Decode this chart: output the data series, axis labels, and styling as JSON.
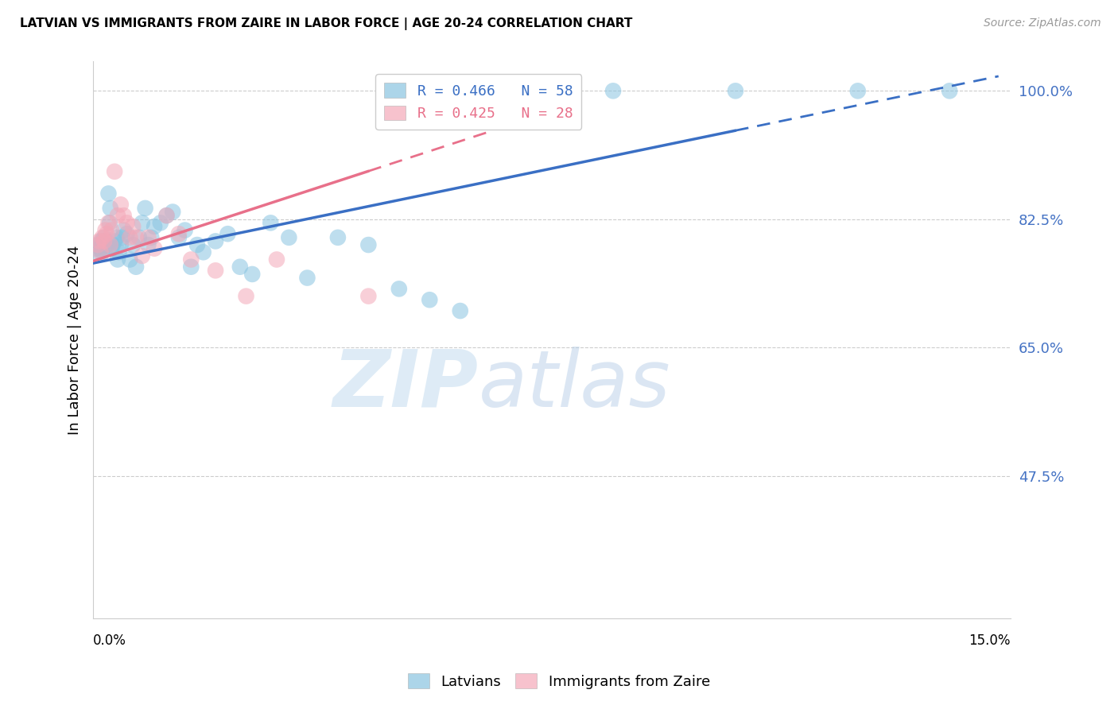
{
  "title": "LATVIAN VS IMMIGRANTS FROM ZAIRE IN LABOR FORCE | AGE 20-24 CORRELATION CHART",
  "source": "Source: ZipAtlas.com",
  "ylabel": "In Labor Force | Age 20-24",
  "ylabel_ticks": [
    47.5,
    65.0,
    82.5,
    100.0
  ],
  "ylabel_tick_labels": [
    "47.5%",
    "65.0%",
    "82.5%",
    "100.0%"
  ],
  "xmin": 0.0,
  "xmax": 15.0,
  "ymin": 28.0,
  "ymax": 104.0,
  "legend_blue": "R = 0.466   N = 58",
  "legend_pink": "R = 0.425   N = 28",
  "blue_color": "#89c4e1",
  "pink_color": "#f4a8b8",
  "blue_line_color": "#3a6fc4",
  "pink_line_color": "#e8708a",
  "watermark_zip": "ZIP",
  "watermark_atlas": "atlas",
  "blue_scatter_x": [
    0.05,
    0.08,
    0.1,
    0.12,
    0.13,
    0.15,
    0.15,
    0.17,
    0.18,
    0.2,
    0.22,
    0.25,
    0.27,
    0.28,
    0.3,
    0.32,
    0.35,
    0.38,
    0.4,
    0.42,
    0.45,
    0.48,
    0.5,
    0.55,
    0.6,
    0.65,
    0.7,
    0.75,
    0.8,
    0.85,
    0.9,
    0.95,
    1.0,
    1.1,
    1.2,
    1.3,
    1.4,
    1.5,
    1.6,
    1.7,
    1.8,
    2.0,
    2.2,
    2.4,
    2.6,
    2.9,
    3.2,
    3.5,
    4.0,
    4.5,
    5.0,
    5.5,
    6.0,
    7.0,
    8.5,
    10.5,
    12.5,
    14.0
  ],
  "blue_scatter_y": [
    78.5,
    78.0,
    79.0,
    78.5,
    79.5,
    78.0,
    79.0,
    79.5,
    80.0,
    78.5,
    79.0,
    86.0,
    82.0,
    84.0,
    78.5,
    79.0,
    79.5,
    80.0,
    77.0,
    78.0,
    79.0,
    80.0,
    81.0,
    80.5,
    77.0,
    79.0,
    76.0,
    80.0,
    82.0,
    84.0,
    79.0,
    80.0,
    81.5,
    82.0,
    83.0,
    83.5,
    80.0,
    81.0,
    76.0,
    79.0,
    78.0,
    79.5,
    80.5,
    76.0,
    75.0,
    82.0,
    80.0,
    74.5,
    80.0,
    79.0,
    73.0,
    71.5,
    70.0,
    100.0,
    100.0,
    100.0,
    100.0,
    100.0
  ],
  "pink_scatter_x": [
    0.08,
    0.1,
    0.12,
    0.15,
    0.18,
    0.2,
    0.22,
    0.25,
    0.28,
    0.3,
    0.35,
    0.4,
    0.45,
    0.5,
    0.55,
    0.6,
    0.65,
    0.7,
    0.8,
    0.9,
    1.0,
    1.2,
    1.4,
    1.6,
    2.0,
    2.5,
    3.0,
    4.5
  ],
  "pink_scatter_y": [
    79.0,
    79.5,
    78.0,
    80.0,
    79.5,
    81.0,
    80.5,
    82.0,
    79.0,
    81.0,
    89.0,
    83.0,
    84.5,
    83.0,
    82.0,
    80.0,
    81.5,
    80.0,
    77.5,
    80.0,
    78.5,
    83.0,
    80.5,
    77.0,
    75.5,
    72.0,
    77.0,
    72.0
  ],
  "blue_line_x0": 0.0,
  "blue_line_y0": 76.5,
  "blue_line_x1": 14.8,
  "blue_line_y1": 102.0,
  "blue_dash_start_x": 10.5,
  "pink_line_x0": 0.0,
  "pink_line_y0": 76.8,
  "pink_line_x1": 6.5,
  "pink_line_y1": 94.5,
  "pink_dash_start_x": 4.5,
  "grid_color": "#cccccc",
  "axis_color": "#cccccc"
}
